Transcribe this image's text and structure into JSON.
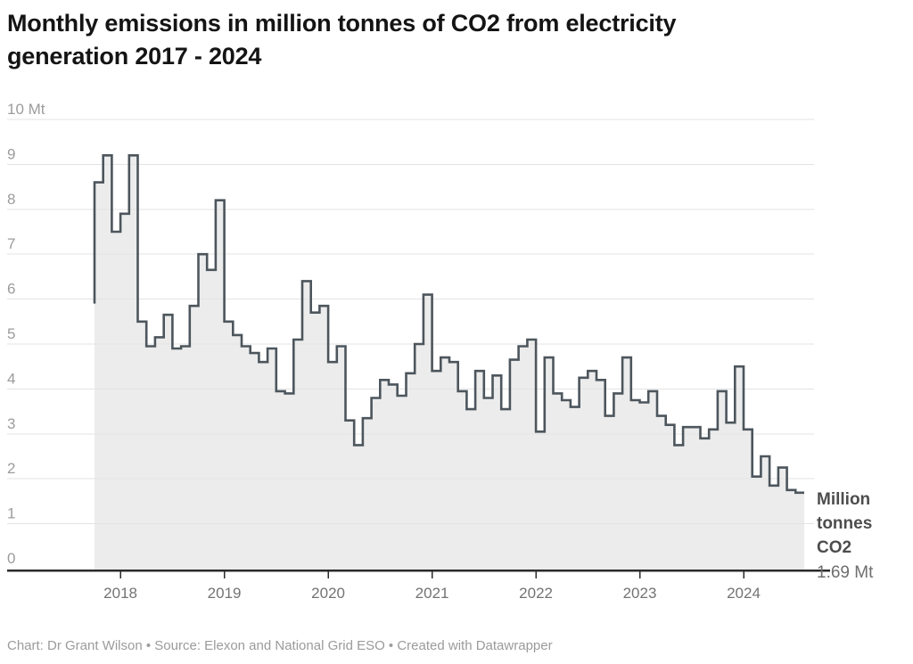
{
  "header": {
    "title_line1": "Monthly emissions in million tonnes of CO2 from electricity",
    "title_line2": "generation 2017 - 2024"
  },
  "chart_data": {
    "type": "area",
    "subtype": "step",
    "title": "Monthly emissions in million tonnes of CO2 from electricity generation 2017 - 2024",
    "xlabel": "",
    "ylabel": "Mt",
    "ylim": [
      0,
      10
    ],
    "grid": true,
    "legend_position": "none",
    "y_tick_labels": [
      "0",
      "1",
      "2",
      "3",
      "4",
      "5",
      "6",
      "7",
      "8",
      "9",
      "10 Mt"
    ],
    "x_tick_labels": [
      "2018",
      "2019",
      "2020",
      "2021",
      "2022",
      "2023",
      "2024"
    ],
    "months": [
      "Oct 2017",
      "Nov 2017",
      "Dec 2017",
      "Jan 2018",
      "Feb 2018",
      "Mar 2018",
      "Apr 2018",
      "May 2018",
      "Jun 2018",
      "Jul 2018",
      "Aug 2018",
      "Sep 2018",
      "Oct 2018",
      "Nov 2018",
      "Dec 2018",
      "Jan 2019",
      "Feb 2019",
      "Mar 2019",
      "Apr 2019",
      "May 2019",
      "Jun 2019",
      "Jul 2019",
      "Aug 2019",
      "Sep 2019",
      "Oct 2019",
      "Nov 2019",
      "Dec 2019",
      "Jan 2020",
      "Feb 2020",
      "Mar 2020",
      "Apr 2020",
      "May 2020",
      "Jun 2020",
      "Jul 2020",
      "Aug 2020",
      "Sep 2020",
      "Oct 2020",
      "Nov 2020",
      "Dec 2020",
      "Jan 2021",
      "Feb 2021",
      "Mar 2021",
      "Apr 2021",
      "May 2021",
      "Jun 2021",
      "Jul 2021",
      "Aug 2021",
      "Sep 2021",
      "Oct 2021",
      "Nov 2021",
      "Dec 2021",
      "Jan 2022",
      "Feb 2022",
      "Mar 2022",
      "Apr 2022",
      "May 2022",
      "Jun 2022",
      "Jul 2022",
      "Aug 2022",
      "Sep 2022",
      "Oct 2022",
      "Nov 2022",
      "Dec 2022",
      "Jan 2023",
      "Feb 2023",
      "Mar 2023",
      "Apr 2023",
      "May 2023",
      "Jun 2023",
      "Jul 2023",
      "Aug 2023",
      "Sep 2023",
      "Oct 2023",
      "Nov 2023",
      "Dec 2023",
      "Jan 2024",
      "Feb 2024",
      "Mar 2024",
      "Apr 2024",
      "May 2024",
      "Jun 2024",
      "Jul 2024",
      "Aug 2024"
    ],
    "values": [
      5.9,
      8.6,
      9.2,
      7.5,
      7.9,
      9.2,
      5.5,
      4.95,
      5.15,
      5.65,
      4.9,
      4.95,
      5.85,
      7.0,
      6.65,
      8.2,
      5.5,
      5.2,
      4.95,
      4.8,
      4.6,
      4.9,
      3.95,
      3.9,
      5.1,
      6.4,
      5.7,
      5.85,
      4.6,
      4.95,
      3.3,
      2.75,
      3.35,
      3.8,
      4.2,
      4.1,
      3.85,
      4.35,
      5.0,
      6.1,
      4.4,
      4.7,
      4.6,
      3.95,
      3.55,
      4.4,
      3.8,
      4.3,
      3.55,
      4.65,
      4.95,
      5.1,
      3.05,
      4.7,
      3.9,
      3.75,
      3.6,
      4.25,
      4.4,
      4.2,
      3.4,
      3.9,
      4.7,
      3.75,
      3.7,
      3.95,
      3.4,
      3.2,
      2.75,
      3.15,
      3.15,
      2.9,
      3.1,
      3.95,
      3.25,
      4.5,
      3.1,
      2.05,
      2.5,
      1.85,
      2.25,
      1.75,
      1.69
    ],
    "last_value_label": "1.69 Mt",
    "colors": {
      "line": "#4d565d",
      "fill": "#ececec",
      "grid": "#e3e3e3",
      "axis": "#2b2b2b",
      "y_label": "#9c9c9c",
      "x_label": "#737373"
    }
  },
  "annotation": {
    "line1": "Million",
    "line2": "tonnes",
    "line3": "CO2",
    "value": "1.69 Mt"
  },
  "footer": {
    "text": "Chart: Dr Grant Wilson • Source: Elexon and National Grid ESO • Created with Datawrapper"
  }
}
